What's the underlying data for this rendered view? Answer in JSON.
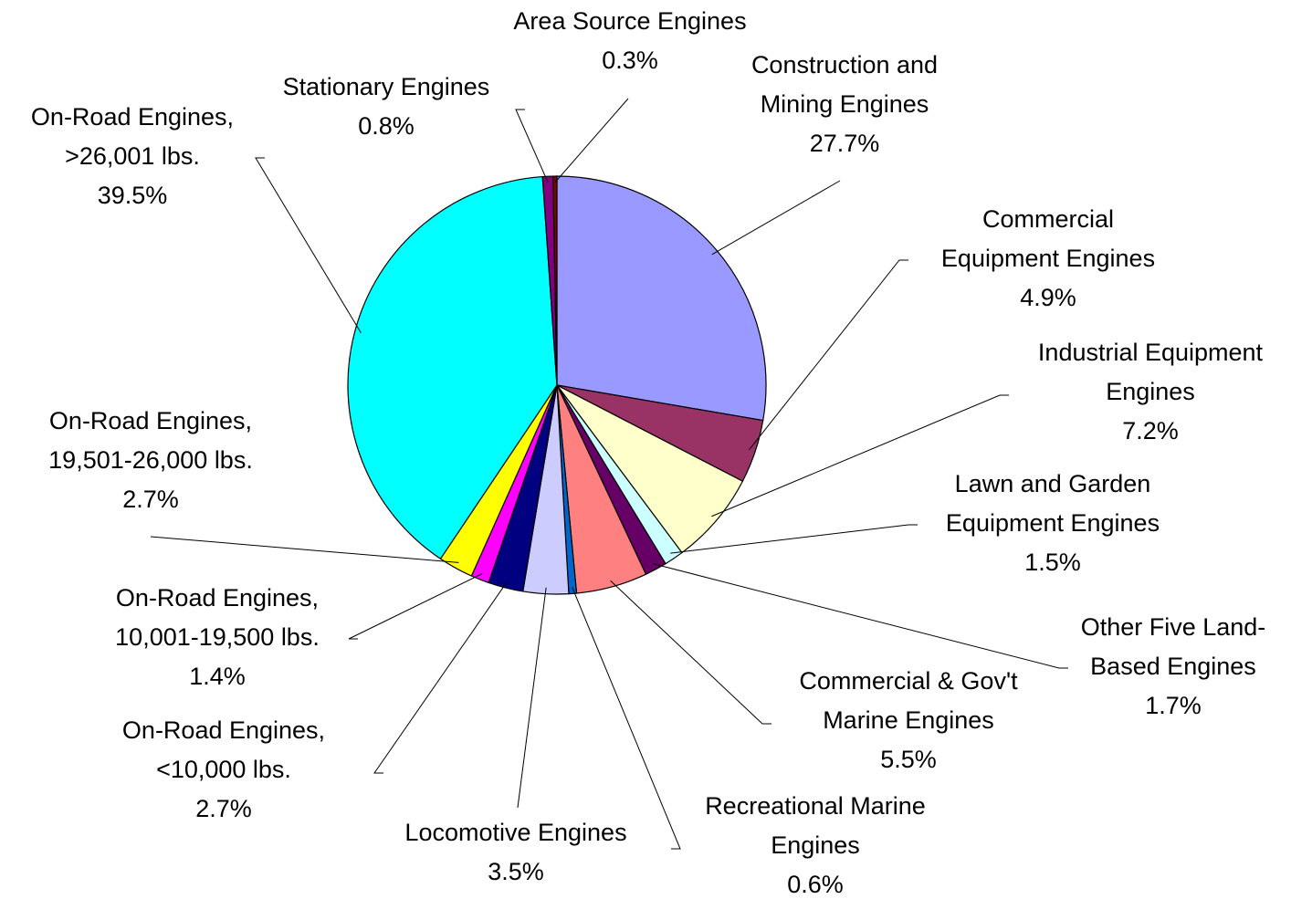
{
  "chart_data": {
    "type": "pie",
    "categories": [
      [
        "Construction and",
        "Mining Engines"
      ],
      [
        "Commercial",
        "Equipment Engines"
      ],
      [
        "Industrial Equipment",
        "Engines"
      ],
      [
        "Lawn and Garden",
        "Equipment Engines"
      ],
      [
        "Other Five Land-",
        "Based Engines"
      ],
      [
        "Commercial & Gov't",
        "Marine Engines"
      ],
      [
        "Recreational Marine",
        "Engines"
      ],
      [
        "Locomotive Engines"
      ],
      [
        "On-Road Engines,",
        "<10,000 lbs."
      ],
      [
        "On-Road Engines,",
        "10,001-19,500 lbs."
      ],
      [
        "On-Road Engines,",
        "19,501-26,000 lbs."
      ],
      [
        "On-Road Engines,",
        ">26,001 lbs."
      ],
      [
        "Stationary Engines"
      ],
      [
        "Area Source Engines"
      ]
    ],
    "values": [
      27.7,
      4.9,
      7.2,
      1.5,
      1.7,
      5.5,
      0.6,
      3.5,
      2.7,
      1.4,
      2.7,
      39.5,
      0.8,
      0.3
    ],
    "value_labels": [
      "27.7%",
      "4.9%",
      "7.2%",
      "1.5%",
      "1.7%",
      "5.5%",
      "0.6%",
      "3.5%",
      "2.7%",
      "1.4%",
      "2.7%",
      "39.5%",
      "0.8%",
      "0.3%"
    ],
    "colors": [
      "#9999ff",
      "#993366",
      "#ffffcc",
      "#ccffff",
      "#660066",
      "#ff8080",
      "#0066cc",
      "#ccccff",
      "#000080",
      "#ff00ff",
      "#ffff00",
      "#00ffff",
      "#800080",
      "#800000"
    ]
  }
}
